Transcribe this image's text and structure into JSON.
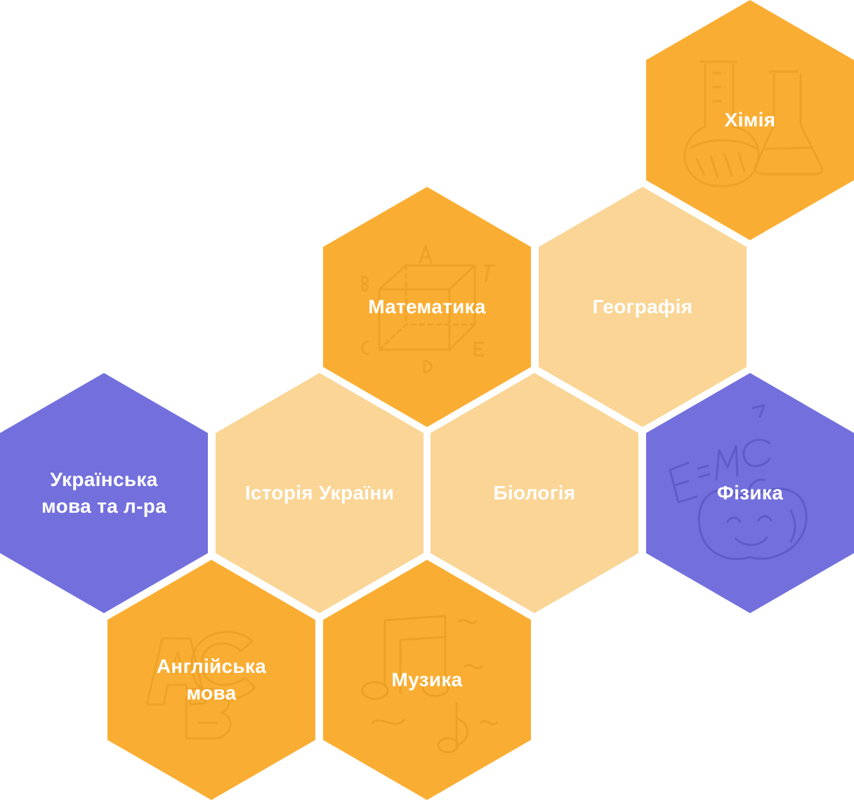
{
  "colors": {
    "orange": "#F9AE33",
    "light_orange": "#FAD595",
    "purple": "#7370DD",
    "label_text": "#FFFFFF",
    "orange_doodle": "#E59A1E",
    "purple_doodle": "#5A57C6"
  },
  "subjects": [
    {
      "id": "chemistry",
      "lines": [
        "Хімія"
      ],
      "color": "orange",
      "icon": "flask-icon"
    },
    {
      "id": "math",
      "lines": [
        "Математика"
      ],
      "color": "orange",
      "icon": "cube-icon"
    },
    {
      "id": "geography",
      "lines": [
        "Географія"
      ],
      "color": "light_orange",
      "icon": ""
    },
    {
      "id": "ukrainian",
      "lines": [
        "Українська",
        "мова та л-ра"
      ],
      "color": "purple",
      "icon": ""
    },
    {
      "id": "history",
      "lines": [
        "Історія України"
      ],
      "color": "light_orange",
      "icon": ""
    },
    {
      "id": "biology",
      "lines": [
        "Біологія"
      ],
      "color": "light_orange",
      "icon": ""
    },
    {
      "id": "physics",
      "lines": [
        "Фізика"
      ],
      "color": "purple",
      "icon": "apple-formula-icon"
    },
    {
      "id": "english",
      "lines": [
        "Англійська",
        "мова"
      ],
      "color": "orange",
      "icon": "abc-letters-icon"
    },
    {
      "id": "music",
      "lines": [
        "Музика"
      ],
      "color": "orange",
      "icon": "music-notes-icon"
    }
  ]
}
